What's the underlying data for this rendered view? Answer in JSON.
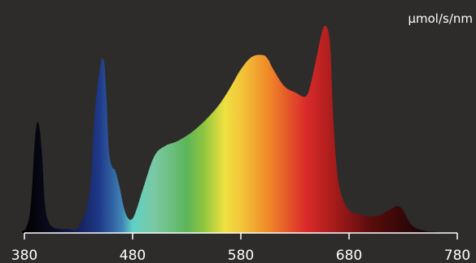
{
  "chart_data": {
    "type": "area",
    "ylabel": "µmol/s/nm",
    "xlim": [
      380,
      780
    ],
    "ylim": [
      0,
      1
    ],
    "xticks": [
      "380",
      "480",
      "580",
      "680",
      "780"
    ],
    "grid": false,
    "legend": "none",
    "series": [
      {
        "x": [
          378,
          382,
          386,
          390,
          393,
          396,
          399,
          402,
          406,
          412,
          420,
          430,
          440,
          445,
          450,
          452,
          454,
          456,
          458,
          461,
          464,
          468,
          472,
          476,
          480,
          484,
          490,
          500,
          510,
          520,
          530,
          540,
          550,
          560,
          570,
          580,
          590,
          600,
          605,
          610,
          620,
          630,
          640,
          645,
          650,
          655,
          658,
          661,
          663,
          665,
          668,
          672,
          680,
          690,
          700,
          710,
          720,
          725,
          730,
          735,
          740,
          750,
          760,
          770,
          778
        ],
        "values": [
          0.01,
          0.03,
          0.14,
          0.47,
          0.53,
          0.4,
          0.14,
          0.06,
          0.03,
          0.02,
          0.02,
          0.03,
          0.19,
          0.58,
          0.8,
          0.84,
          0.81,
          0.63,
          0.4,
          0.32,
          0.3,
          0.22,
          0.12,
          0.07,
          0.07,
          0.12,
          0.22,
          0.37,
          0.42,
          0.44,
          0.47,
          0.51,
          0.56,
          0.62,
          0.7,
          0.79,
          0.85,
          0.86,
          0.84,
          0.79,
          0.71,
          0.68,
          0.66,
          0.73,
          0.85,
          0.97,
          1.0,
          0.97,
          0.87,
          0.6,
          0.35,
          0.2,
          0.11,
          0.09,
          0.08,
          0.09,
          0.12,
          0.13,
          0.11,
          0.06,
          0.03,
          0.01,
          0.005,
          0.0,
          0.0
        ]
      }
    ],
    "colors": {
      "background": "#2d2c2b",
      "axis": "#ffffff",
      "gradient": [
        {
          "nm": 380,
          "color": "#000000"
        },
        {
          "nm": 405,
          "color": "#0a0c22"
        },
        {
          "nm": 430,
          "color": "#16205c"
        },
        {
          "nm": 450,
          "color": "#1f3a8a"
        },
        {
          "nm": 470,
          "color": "#3f82b5"
        },
        {
          "nm": 480,
          "color": "#5fd1c5"
        },
        {
          "nm": 500,
          "color": "#7bc8a4"
        },
        {
          "nm": 530,
          "color": "#5db55a"
        },
        {
          "nm": 545,
          "color": "#8cc43f"
        },
        {
          "nm": 565,
          "color": "#f0e040"
        },
        {
          "nm": 580,
          "color": "#f2c63a"
        },
        {
          "nm": 605,
          "color": "#f08a2a"
        },
        {
          "nm": 640,
          "color": "#db2a2a"
        },
        {
          "nm": 665,
          "color": "#a91c1c"
        },
        {
          "nm": 700,
          "color": "#5a0c0c"
        },
        {
          "nm": 750,
          "color": "#1a0505"
        },
        {
          "nm": 780,
          "color": "#000000"
        }
      ]
    }
  }
}
